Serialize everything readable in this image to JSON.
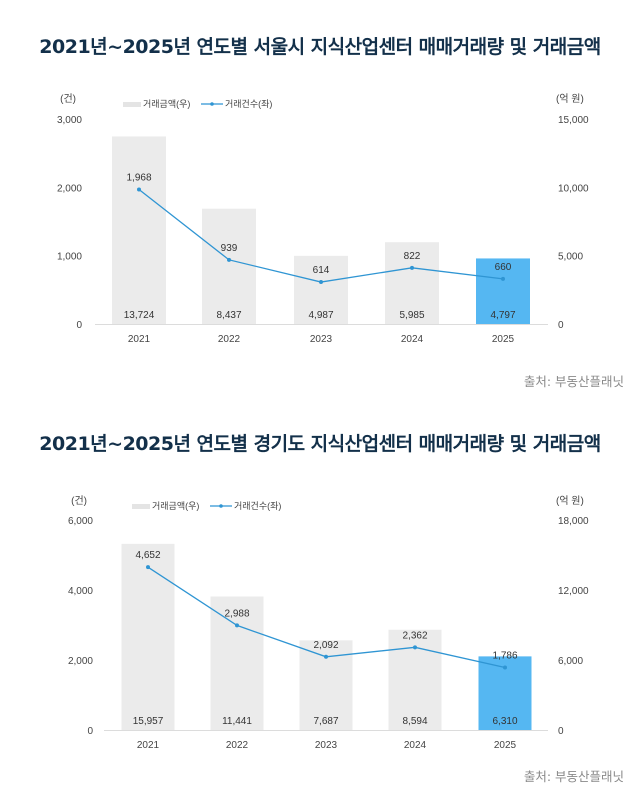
{
  "colors": {
    "bar": "#ebebeb",
    "bar_highlight": "#55b7f2",
    "line": "#2f95d3",
    "title": "#13304a",
    "axis_text": "#444444",
    "source_text": "#8a8a8a"
  },
  "chart_data": [
    {
      "type": "bar",
      "title": "2021년~2025년 연도별 서울시 지식산업센터 매매거래량 및 거래금액",
      "categories": [
        "2021",
        "2022",
        "2023",
        "2024",
        "2025"
      ],
      "series": [
        {
          "name": "거래금액(우)",
          "kind": "bar",
          "axis": "right",
          "values": [
            13724,
            8437,
            4987,
            5985,
            4797
          ],
          "labels": [
            "13,724",
            "8,437",
            "4,987",
            "5,985",
            "4,797"
          ],
          "highlight_index": 4
        },
        {
          "name": "거래건수(좌)",
          "kind": "line",
          "axis": "left",
          "values": [
            1968,
            939,
            614,
            822,
            660
          ],
          "labels": [
            "1,968",
            "939",
            "614",
            "822",
            "660"
          ]
        }
      ],
      "left_axis": {
        "unit": "(건)",
        "ylim": [
          0,
          3000
        ],
        "ticks": [
          0,
          1000,
          2000,
          3000
        ],
        "tick_labels": [
          "0",
          "1,000",
          "2,000",
          "3,000"
        ]
      },
      "right_axis": {
        "unit": "(억 원)",
        "ylim": [
          0,
          15000
        ],
        "ticks": [
          0,
          5000,
          10000,
          15000
        ],
        "tick_labels": [
          "0",
          "5,000",
          "10,000",
          "15,000"
        ]
      },
      "xlabel": "",
      "grid": false,
      "legend": "top-left",
      "source": "출처: 부동산플래닛"
    },
    {
      "type": "bar",
      "title": "2021년~2025년 연도별 경기도 지식산업센터 매매거래량 및 거래금액",
      "categories": [
        "2021",
        "2022",
        "2023",
        "2024",
        "2025"
      ],
      "series": [
        {
          "name": "거래금액(우)",
          "kind": "bar",
          "axis": "right",
          "values": [
            15957,
            11441,
            7687,
            8594,
            6310
          ],
          "labels": [
            "15,957",
            "11,441",
            "7,687",
            "8,594",
            "6,310"
          ],
          "highlight_index": 4
        },
        {
          "name": "거래건수(좌)",
          "kind": "line",
          "axis": "left",
          "values": [
            4652,
            2988,
            2092,
            2362,
            1786
          ],
          "labels": [
            "4,652",
            "2,988",
            "2,092",
            "2,362",
            "1,786"
          ]
        }
      ],
      "left_axis": {
        "unit": "(건)",
        "ylim": [
          0,
          6000
        ],
        "ticks": [
          0,
          2000,
          4000,
          6000
        ],
        "tick_labels": [
          "0",
          "2,000",
          "4,000",
          "6,000"
        ]
      },
      "right_axis": {
        "unit": "(억 원)",
        "ylim": [
          0,
          18000
        ],
        "ticks": [
          0,
          6000,
          12000,
          18000
        ],
        "tick_labels": [
          "0",
          "6,000",
          "12,000",
          "18,000"
        ]
      },
      "xlabel": "",
      "grid": false,
      "legend": "top-left",
      "source": "출처: 부동산플래닛"
    }
  ]
}
